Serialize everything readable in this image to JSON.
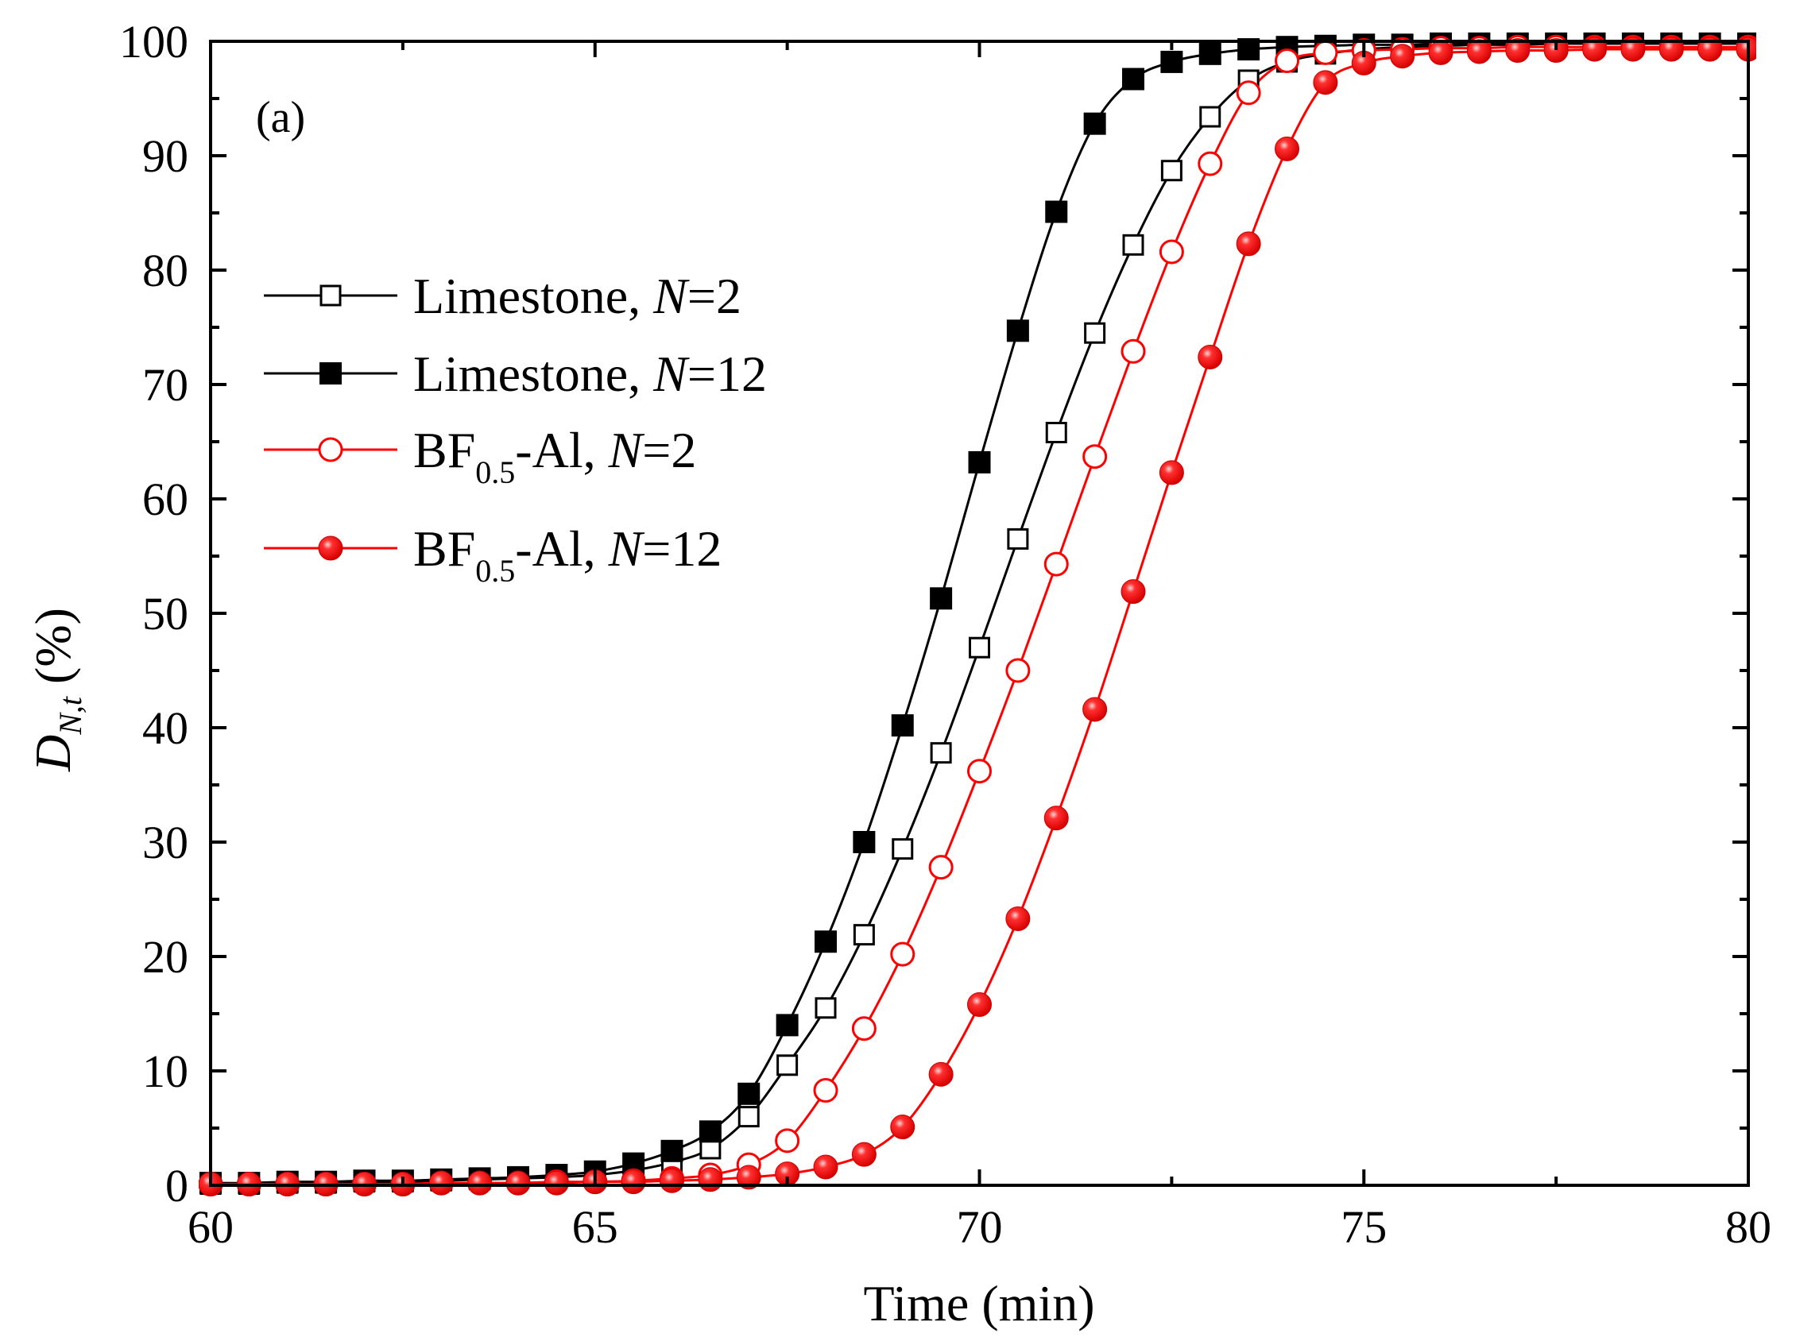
{
  "chart_data": {
    "type": "line",
    "panel_label": "(a)",
    "xlabel": "Time (min)",
    "ylabel_main": "D",
    "ylabel_sub": "N,t",
    "ylabel_unit": "(%)",
    "xlim": [
      60,
      80
    ],
    "ylim": [
      0,
      100
    ],
    "xticks": [
      60,
      65,
      70,
      75,
      80
    ],
    "yticks": [
      0,
      10,
      20,
      30,
      40,
      50,
      60,
      70,
      80,
      90,
      100
    ],
    "x": [
      60.0,
      60.5,
      61.0,
      61.5,
      62.0,
      62.5,
      63.0,
      63.5,
      64.0,
      64.5,
      65.0,
      65.5,
      66.0,
      66.5,
      67.0,
      67.5,
      68.0,
      68.5,
      69.0,
      69.5,
      70.0,
      70.5,
      71.0,
      71.5,
      72.0,
      72.5,
      73.0,
      73.5,
      74.0,
      74.5,
      75.0,
      75.5,
      76.0,
      76.5,
      77.0,
      77.5,
      78.0,
      78.5,
      79.0,
      79.5,
      80.0
    ],
    "series": [
      {
        "name": "Limestone, N=2",
        "label_main": "Limestone, ",
        "label_n": "N",
        "label_tail": "=2",
        "label_sub": "",
        "label_after_sub": "",
        "color": "#000000",
        "marker": "square-open",
        "values": [
          0.1,
          0.1,
          0.2,
          0.2,
          0.3,
          0.3,
          0.4,
          0.5,
          0.6,
          0.7,
          0.9,
          1.3,
          2.0,
          3.2,
          6.0,
          10.5,
          15.5,
          21.9,
          29.4,
          37.8,
          47.0,
          56.5,
          65.8,
          74.5,
          82.2,
          88.7,
          93.4,
          96.6,
          98.2,
          98.9,
          99.3,
          99.5,
          99.6,
          99.7,
          99.7,
          99.8,
          99.8,
          99.8,
          99.8,
          99.8,
          99.8
        ]
      },
      {
        "name": "Limestone, N=12",
        "label_main": "Limestone, ",
        "label_n": "N",
        "label_tail": "=12",
        "label_sub": "",
        "label_after_sub": "",
        "color": "#000000",
        "marker": "square-filled",
        "values": [
          0.2,
          0.2,
          0.3,
          0.3,
          0.4,
          0.4,
          0.5,
          0.6,
          0.7,
          0.9,
          1.2,
          1.9,
          3.0,
          4.7,
          8.0,
          14.0,
          21.3,
          30.0,
          40.2,
          51.3,
          63.2,
          74.7,
          85.1,
          92.8,
          96.7,
          98.2,
          98.9,
          99.3,
          99.5,
          99.6,
          99.7,
          99.7,
          99.8,
          99.8,
          99.8,
          99.8,
          99.8,
          99.8,
          99.8,
          99.8,
          99.8
        ]
      },
      {
        "name": "BF0.5-Al, N=2",
        "label_main": "BF",
        "label_n": "N",
        "label_tail": "=2",
        "label_sub": "0.5",
        "label_after_sub": "-Al, ",
        "color": "#ff0000",
        "marker": "circle-open",
        "values": [
          0.1,
          0.1,
          0.1,
          0.1,
          0.1,
          0.1,
          0.2,
          0.2,
          0.2,
          0.3,
          0.3,
          0.4,
          0.6,
          0.9,
          1.8,
          3.9,
          8.3,
          13.7,
          20.2,
          27.8,
          36.2,
          45.0,
          54.3,
          63.7,
          72.9,
          81.6,
          89.3,
          95.5,
          98.3,
          99.0,
          99.2,
          99.3,
          99.4,
          99.4,
          99.5,
          99.5,
          99.5,
          99.5,
          99.5,
          99.5,
          99.5
        ]
      },
      {
        "name": "BF0.5-Al, N=12",
        "label_main": "BF",
        "label_n": "N",
        "label_tail": "=12",
        "label_sub": "0.5",
        "label_after_sub": "-Al, ",
        "color": "#ff0000",
        "marker": "circle-filled",
        "values": [
          0.1,
          0.1,
          0.1,
          0.1,
          0.1,
          0.1,
          0.2,
          0.2,
          0.2,
          0.2,
          0.3,
          0.3,
          0.4,
          0.5,
          0.7,
          1.0,
          1.6,
          2.7,
          5.1,
          9.7,
          15.8,
          23.3,
          32.1,
          41.6,
          51.9,
          62.3,
          72.4,
          82.3,
          90.6,
          96.4,
          98.1,
          98.7,
          99.0,
          99.1,
          99.2,
          99.2,
          99.3,
          99.3,
          99.3,
          99.3,
          99.3
        ]
      }
    ]
  }
}
